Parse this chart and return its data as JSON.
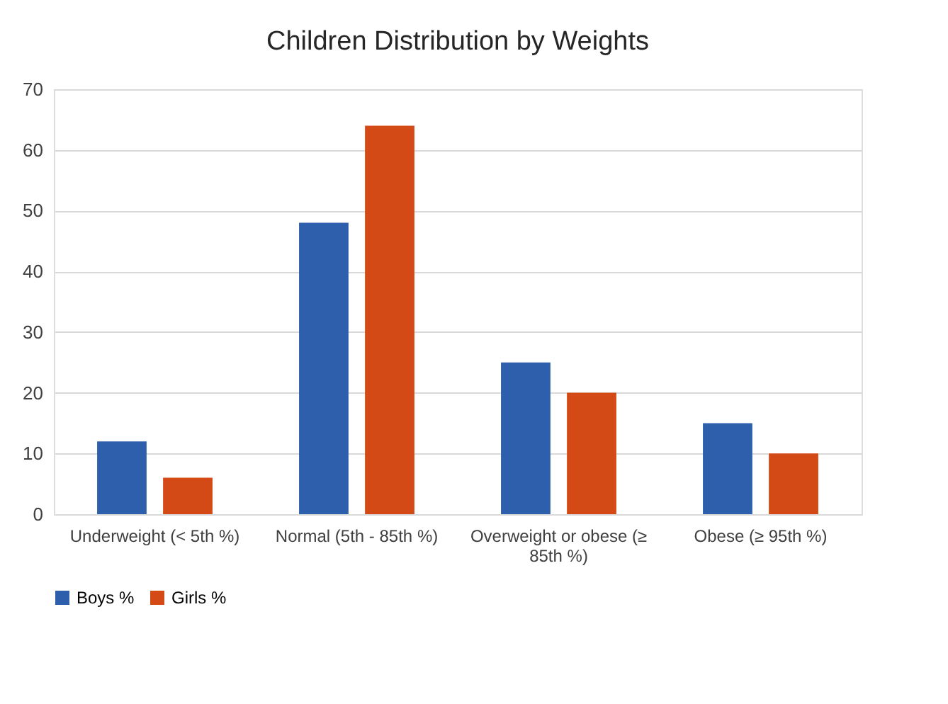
{
  "chart_data": {
    "type": "bar",
    "title": "Children Distribution by Weights",
    "categories": [
      "Underweight (< 5th %)",
      "Normal (5th - 85th %)",
      "Overweight or obese (≥ 85th %)",
      "Obese (≥ 95th %)"
    ],
    "series": [
      {
        "name": "Boys %",
        "color": "#2e5fac",
        "values": [
          12,
          48,
          25,
          15
        ]
      },
      {
        "name": "Girls %",
        "color": "#d44a16",
        "values": [
          6,
          64,
          20,
          10
        ]
      }
    ],
    "ylim": [
      0,
      70
    ],
    "yticks": [
      0,
      10,
      20,
      30,
      40,
      50,
      60,
      70
    ],
    "grid": "y",
    "legend": "bottom"
  }
}
